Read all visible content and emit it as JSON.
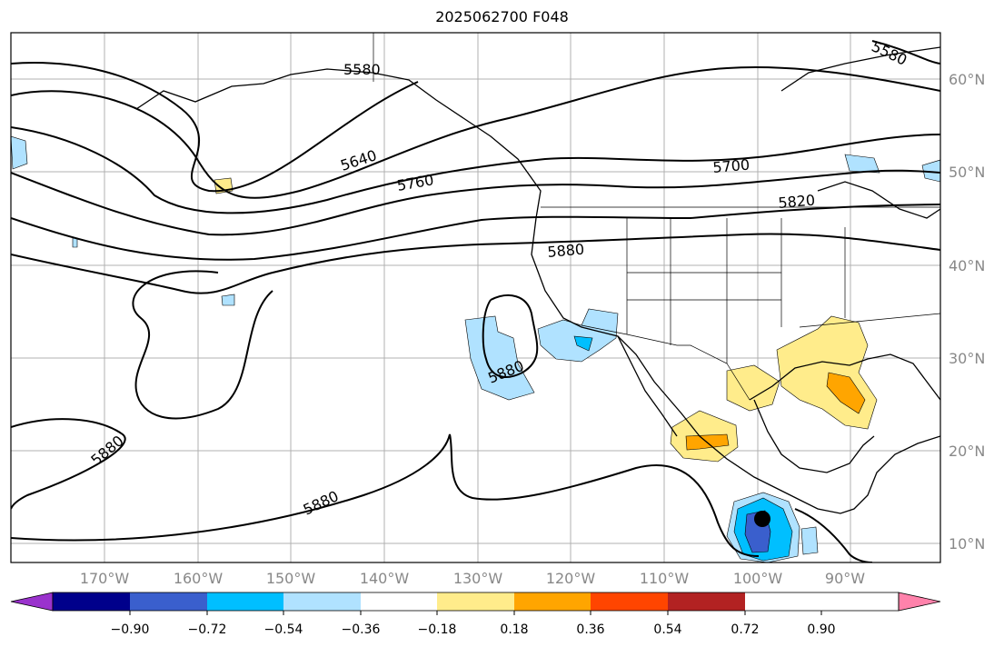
{
  "title": "2025062700 F048",
  "map": {
    "lat_ticks": [
      "60°N",
      "50°N",
      "40°N",
      "30°N",
      "20°N",
      "10°N"
    ],
    "lon_ticks": [
      "170°W",
      "160°W",
      "150°W",
      "140°W",
      "130°W",
      "120°W",
      "110°W",
      "100°W",
      "90°W"
    ],
    "contour_labels": [
      "5580",
      "5580",
      "5640",
      "5760",
      "5700",
      "5820",
      "5880",
      "5880",
      "5880",
      "5880"
    ],
    "storm_marker": "storm-center-marker"
  },
  "colorbar": {
    "colors": [
      "#9a32cd",
      "#00008b",
      "#3a5fcd",
      "#00bfff",
      "#b0e2ff",
      "#ffffff",
      "#ffec8b",
      "#ffa500",
      "#ff4500",
      "#b22222",
      "#ff82ab"
    ],
    "labels": [
      "−0.90",
      "−0.72",
      "−0.54",
      "−0.36",
      "−0.18",
      "0.18",
      "0.36",
      "0.54",
      "0.72",
      "0.90"
    ]
  }
}
